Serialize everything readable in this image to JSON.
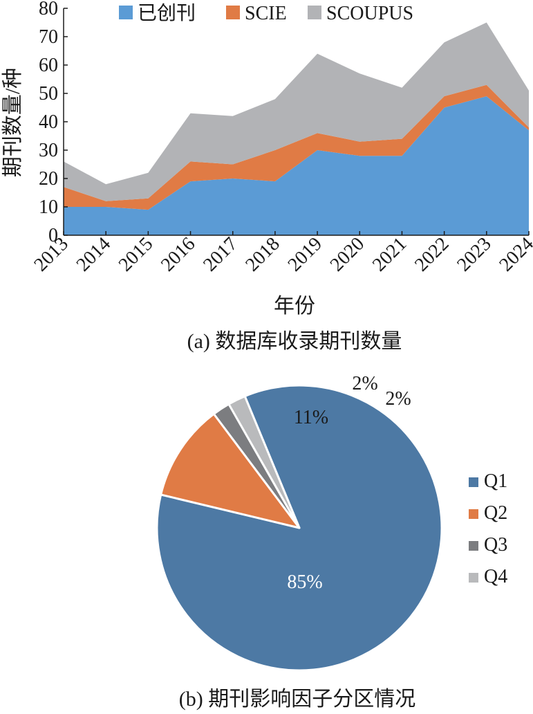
{
  "chart_data": [
    {
      "type": "area",
      "stacked": true,
      "caption": "(a) 数据库收录期刊数量",
      "xlabel": "年份",
      "ylabel": "期刊数量/种",
      "ylim": [
        0,
        80
      ],
      "yticks": [
        0,
        10,
        20,
        30,
        40,
        50,
        60,
        70,
        80
      ],
      "categories": [
        "2013",
        "2014",
        "2015",
        "2016",
        "2017",
        "2018",
        "2019",
        "2020",
        "2021",
        "2022",
        "2023",
        "2024"
      ],
      "legend_position": "top",
      "series": [
        {
          "name": "已创刊",
          "color": "#5b9bd5",
          "values": [
            10,
            10,
            9,
            19,
            20,
            19,
            30,
            28,
            28,
            45,
            49,
            37
          ]
        },
        {
          "name": "SCIE",
          "color": "#e07b45",
          "values": [
            7,
            2,
            4,
            7,
            5,
            11,
            6,
            5,
            6,
            4,
            4,
            1
          ]
        },
        {
          "name": "SCOUPUS",
          "color": "#b2b3b6",
          "values": [
            9,
            6,
            9,
            17,
            17,
            18,
            28,
            24,
            18,
            19,
            22,
            13
          ]
        }
      ]
    },
    {
      "type": "pie",
      "caption": "(b) 期刊影响因子分区情况",
      "legend_position": "right",
      "slices": [
        {
          "name": "Q1",
          "value": 85,
          "label": "85%",
          "color": "#4d79a4"
        },
        {
          "name": "Q2",
          "value": 11,
          "label": "11%",
          "color": "#e07b45"
        },
        {
          "name": "Q3",
          "value": 2,
          "label": "2%",
          "color": "#7c7d80"
        },
        {
          "name": "Q4",
          "value": 2,
          "label": "2%",
          "color": "#b9babc"
        }
      ]
    }
  ]
}
